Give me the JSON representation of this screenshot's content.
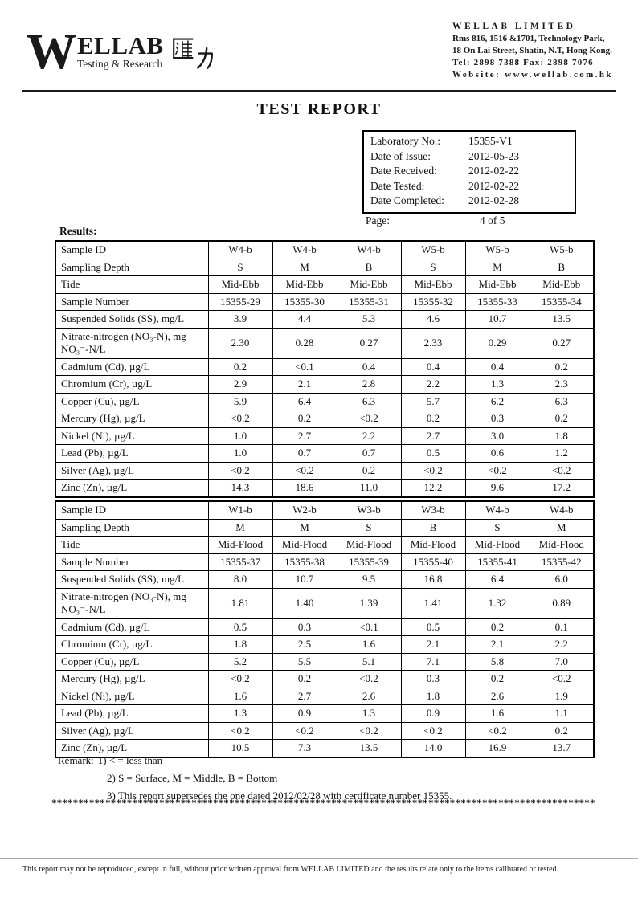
{
  "header": {
    "logo": {
      "wordmark_initial": "W",
      "wordmark_rest": "ELLAB",
      "cjk": "匯力",
      "tagline": "Testing & Research"
    },
    "company": {
      "name": "WELLAB LIMITED",
      "address1": "Rms 816, 1516 &1701, Technology Park,",
      "address2": "18 On Lai Street, Shatin, N.T, Hong Kong.",
      "tel_fax": "Tel: 2898 7388   Fax: 2898 7076",
      "website": "Website: www.wellab.com.hk"
    }
  },
  "title": "TEST REPORT",
  "info_box": {
    "rows": [
      {
        "label": "Laboratory No.:",
        "value": "15355-V1"
      },
      {
        "label": "Date of Issue:",
        "value": "2012-05-23"
      },
      {
        "label": "Date Received:",
        "value": "2012-02-22"
      },
      {
        "label": "Date Tested:",
        "value": "2012-02-22"
      },
      {
        "label": "Date Completed:",
        "value": "2012-02-28"
      }
    ],
    "page_label": "Page:",
    "page_value": "4 of 5"
  },
  "results_label": "Results:",
  "tables": [
    {
      "rows": [
        {
          "label": "Sample ID",
          "values": [
            "W4-b",
            "W4-b",
            "W4-b",
            "W5-b",
            "W5-b",
            "W5-b"
          ]
        },
        {
          "label": "Sampling Depth",
          "values": [
            "S",
            "M",
            "B",
            "S",
            "M",
            "B"
          ]
        },
        {
          "label": "Tide",
          "values": [
            "Mid-Ebb",
            "Mid-Ebb",
            "Mid-Ebb",
            "Mid-Ebb",
            "Mid-Ebb",
            "Mid-Ebb"
          ]
        },
        {
          "label": "Sample Number",
          "values": [
            "15355-29",
            "15355-30",
            "15355-31",
            "15355-32",
            "15355-33",
            "15355-34"
          ]
        },
        {
          "label": "Suspended Solids (SS), mg/L",
          "values": [
            "3.9",
            "4.4",
            "5.3",
            "4.6",
            "10.7",
            "13.5"
          ]
        },
        {
          "label": "Nitrate-nitrogen (NO₃-N), mg NO₃⁻-N/L",
          "values": [
            "2.30",
            "0.28",
            "0.27",
            "2.33",
            "0.29",
            "0.27"
          ]
        },
        {
          "label": "Cadmium (Cd), µg/L",
          "values": [
            "0.2",
            "<0.1",
            "0.4",
            "0.4",
            "0.4",
            "0.2"
          ]
        },
        {
          "label": "Chromium (Cr), µg/L",
          "values": [
            "2.9",
            "2.1",
            "2.8",
            "2.2",
            "1.3",
            "2.3"
          ]
        },
        {
          "label": "Copper (Cu), µg/L",
          "values": [
            "5.9",
            "6.4",
            "6.3",
            "5.7",
            "6.2",
            "6.3"
          ]
        },
        {
          "label": "Mercury (Hg), µg/L",
          "values": [
            "<0.2",
            "0.2",
            "<0.2",
            "0.2",
            "0.3",
            "0.2"
          ]
        },
        {
          "label": "Nickel (Ni), µg/L",
          "values": [
            "1.0",
            "2.7",
            "2.2",
            "2.7",
            "3.0",
            "1.8"
          ]
        },
        {
          "label": "Lead (Pb), µg/L",
          "values": [
            "1.0",
            "0.7",
            "0.7",
            "0.5",
            "0.6",
            "1.2"
          ]
        },
        {
          "label": "Silver (Ag), µg/L",
          "values": [
            "<0.2",
            "<0.2",
            "0.2",
            "<0.2",
            "<0.2",
            "<0.2"
          ]
        },
        {
          "label": "Zinc (Zn), µg/L",
          "values": [
            "14.3",
            "18.6",
            "11.0",
            "12.2",
            "9.6",
            "17.2"
          ]
        }
      ]
    },
    {
      "rows": [
        {
          "label": "Sample ID",
          "values": [
            "W1-b",
            "W2-b",
            "W3-b",
            "W3-b",
            "W4-b",
            "W4-b"
          ]
        },
        {
          "label": "Sampling Depth",
          "values": [
            "M",
            "M",
            "S",
            "B",
            "S",
            "M"
          ]
        },
        {
          "label": "Tide",
          "values": [
            "Mid-Flood",
            "Mid-Flood",
            "Mid-Flood",
            "Mid-Flood",
            "Mid-Flood",
            "Mid-Flood"
          ]
        },
        {
          "label": "Sample Number",
          "values": [
            "15355-37",
            "15355-38",
            "15355-39",
            "15355-40",
            "15355-41",
            "15355-42"
          ]
        },
        {
          "label": "Suspended Solids (SS), mg/L",
          "values": [
            "8.0",
            "10.7",
            "9.5",
            "16.8",
            "6.4",
            "6.0"
          ]
        },
        {
          "label": "Nitrate-nitrogen (NO₃-N), mg NO₃⁻-N/L",
          "values": [
            "1.81",
            "1.40",
            "1.39",
            "1.41",
            "1.32",
            "0.89"
          ]
        },
        {
          "label": "Cadmium (Cd), µg/L",
          "values": [
            "0.5",
            "0.3",
            "<0.1",
            "0.5",
            "0.2",
            "0.1"
          ]
        },
        {
          "label": "Chromium (Cr), µg/L",
          "values": [
            "1.8",
            "2.5",
            "1.6",
            "2.1",
            "2.1",
            "2.2"
          ]
        },
        {
          "label": "Copper (Cu), µg/L",
          "values": [
            "5.2",
            "5.5",
            "5.1",
            "7.1",
            "5.8",
            "7.0"
          ]
        },
        {
          "label": "Mercury (Hg), µg/L",
          "values": [
            "<0.2",
            "0.2",
            "<0.2",
            "0.3",
            "0.2",
            "<0.2"
          ]
        },
        {
          "label": "Nickel (Ni), µg/L",
          "values": [
            "1.6",
            "2.7",
            "2.6",
            "1.8",
            "2.6",
            "1.9"
          ]
        },
        {
          "label": "Lead (Pb), µg/L",
          "values": [
            "1.3",
            "0.9",
            "1.3",
            "0.9",
            "1.6",
            "1.1"
          ]
        },
        {
          "label": "Silver (Ag), µg/L",
          "values": [
            "<0.2",
            "<0.2",
            "<0.2",
            "<0.2",
            "<0.2",
            "0.2"
          ]
        },
        {
          "label": "Zinc (Zn), µg/L",
          "values": [
            "10.5",
            "7.3",
            "13.5",
            "14.0",
            "16.9",
            "13.7"
          ]
        }
      ]
    }
  ],
  "remarks": {
    "prefix": "Remark:",
    "items": [
      "1) < = less than",
      "2) S = Surface, M = Middle, B = Bottom",
      "3) This report supersedes the one dated 2012/02/28 with certificate number 15355."
    ],
    "separator": "**************************************************************************************************************"
  },
  "footer": "This report may not be reproduced, except in full, without prior written approval from WELLAB LIMITED and the results relate only to the items calibrated or tested."
}
